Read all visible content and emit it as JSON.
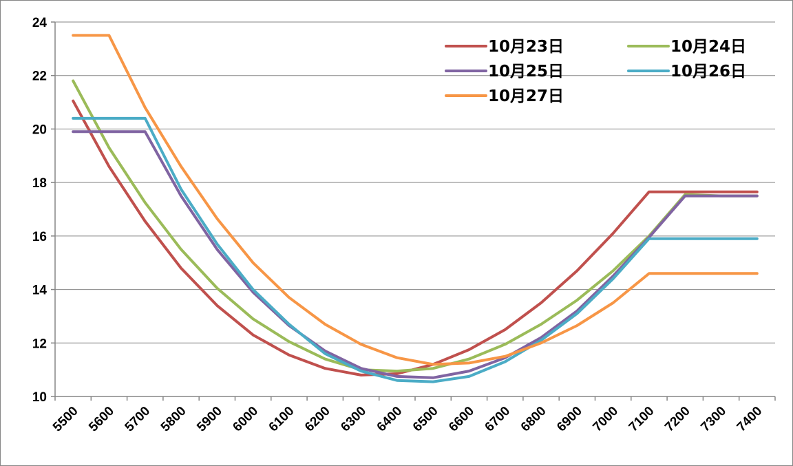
{
  "chart_data": {
    "type": "line",
    "title": "",
    "xlabel": "",
    "ylabel": "",
    "x": [
      5500,
      5600,
      5700,
      5800,
      5900,
      6000,
      6100,
      6200,
      6300,
      6400,
      6500,
      6600,
      6700,
      6800,
      6900,
      7000,
      7100,
      7200,
      7300,
      7400
    ],
    "ylim": [
      10,
      24
    ],
    "yticks": [
      10,
      12,
      14,
      16,
      18,
      20,
      22,
      24
    ],
    "grid": "horizontal",
    "legend_position": "top-right",
    "series": [
      {
        "name": "10月23日",
        "color": "#C0504D",
        "values": [
          21.05,
          18.6,
          16.55,
          14.8,
          13.4,
          12.3,
          11.55,
          11.05,
          10.8,
          10.85,
          11.2,
          11.75,
          12.5,
          13.5,
          14.7,
          16.1,
          17.65,
          17.65,
          17.65,
          17.65
        ]
      },
      {
        "name": "10月24日",
        "color": "#9BBB59",
        "values": [
          21.8,
          19.3,
          17.25,
          15.5,
          14.05,
          12.9,
          12.05,
          11.4,
          11.0,
          10.95,
          11.05,
          11.4,
          11.95,
          12.7,
          13.6,
          14.7,
          16.0,
          17.55,
          17.5,
          17.5
        ]
      },
      {
        "name": "10月25日",
        "color": "#8064A2",
        "values": [
          19.9,
          19.9,
          19.9,
          17.5,
          15.5,
          13.9,
          12.65,
          11.7,
          11.05,
          10.75,
          10.7,
          10.95,
          11.45,
          12.2,
          13.2,
          14.5,
          15.95,
          17.5,
          17.5,
          17.5
        ]
      },
      {
        "name": "10月26日",
        "color": "#4BACC6",
        "values": [
          20.4,
          20.4,
          20.4,
          17.75,
          15.7,
          14.0,
          12.7,
          11.6,
          10.95,
          10.6,
          10.55,
          10.75,
          11.3,
          12.1,
          13.1,
          14.4,
          15.9,
          15.9,
          15.9,
          15.9
        ]
      },
      {
        "name": "10月27日",
        "color": "#F79646",
        "values": [
          23.5,
          23.5,
          20.8,
          18.6,
          16.65,
          15.0,
          13.7,
          12.7,
          11.95,
          11.45,
          11.2,
          11.25,
          11.5,
          12.0,
          12.65,
          13.5,
          14.6,
          14.6,
          14.6,
          14.6
        ]
      }
    ]
  }
}
